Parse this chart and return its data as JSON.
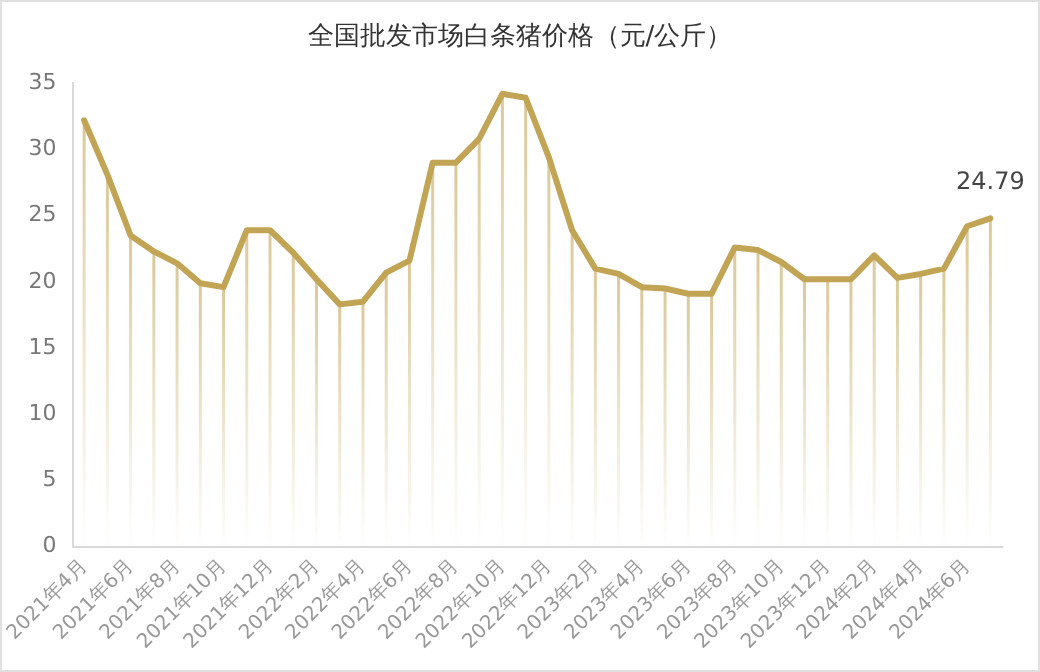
{
  "chart_data": {
    "type": "line",
    "title": "全国批发市场白条猪价格（元/公斤）",
    "categories": [
      "2021年4月",
      null,
      "2021年6月",
      null,
      "2021年8月",
      null,
      "2021年10月",
      null,
      "2021年12月",
      null,
      "2022年2月",
      null,
      "2022年4月",
      null,
      "2022年6月",
      null,
      "2022年8月",
      null,
      "2022年10月",
      null,
      "2022年12月",
      null,
      "2023年2月",
      null,
      "2023年4月",
      null,
      "2023年6月",
      null,
      "2023年8月",
      null,
      "2023年10月",
      null,
      "2023年12月",
      null,
      "2024年2月",
      null,
      "2024年4月",
      null,
      "2024年6月",
      null
    ],
    "series": [
      {
        "color": "#c2a455",
        "values": [
          32.2,
          28.1,
          23.5,
          22.3,
          21.4,
          19.9,
          19.6,
          23.9,
          23.9,
          22.2,
          20.2,
          18.3,
          18.5,
          20.7,
          21.6,
          29.0,
          29.0,
          30.8,
          34.2,
          33.9,
          29.4,
          23.9,
          21.0,
          20.6,
          19.6,
          19.5,
          19.1,
          19.1,
          22.6,
          22.4,
          21.5,
          20.2,
          20.2,
          20.2,
          22.0,
          20.3,
          20.6,
          21.0,
          24.2,
          24.79
        ],
        "value_labels": [
          null,
          null,
          null,
          null,
          null,
          null,
          null,
          null,
          null,
          null,
          null,
          null,
          null,
          null,
          null,
          null,
          null,
          null,
          null,
          null,
          null,
          null,
          null,
          null,
          null,
          null,
          null,
          null,
          null,
          null,
          null,
          null,
          null,
          null,
          null,
          null,
          null,
          null,
          null,
          "24.79"
        ]
      }
    ],
    "ylim": [
      0,
      35
    ],
    "yticks": [
      0,
      5,
      10,
      15,
      20,
      25,
      30,
      35
    ],
    "grid": "x",
    "legend": false,
    "marker": "none",
    "line_style": "solid"
  }
}
